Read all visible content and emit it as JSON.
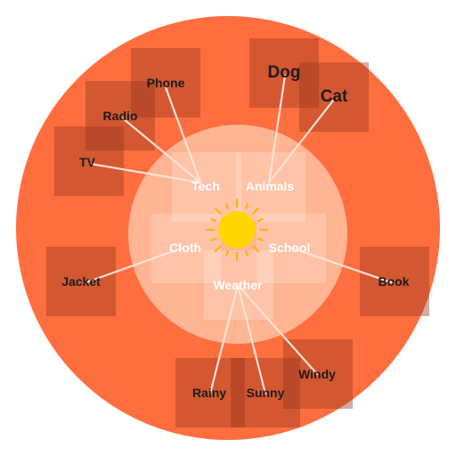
{
  "colors": {
    "outer_disc": "#ff6e3f",
    "inner_disc": "#ffb493",
    "link_line": "#ffe2d4",
    "word_text": "#1c1c1c",
    "category_text": "#ffffff",
    "sun_core": "#ffd600",
    "sun_ray": "#ffb300"
  },
  "center_icon": "sun-icon",
  "categories": {
    "tech": "Tech",
    "animals": "Animals",
    "cloth": "Cloth",
    "school": "School",
    "weather": "Weather"
  },
  "words": {
    "phone": "Phone",
    "radio": "Radio",
    "tv": "TV",
    "dog": "Dog",
    "cat": "Cat",
    "jacket": "Jacket",
    "book": "Book",
    "rainy": "Rainy",
    "sunny": "Sunny",
    "windy": "Windy"
  }
}
